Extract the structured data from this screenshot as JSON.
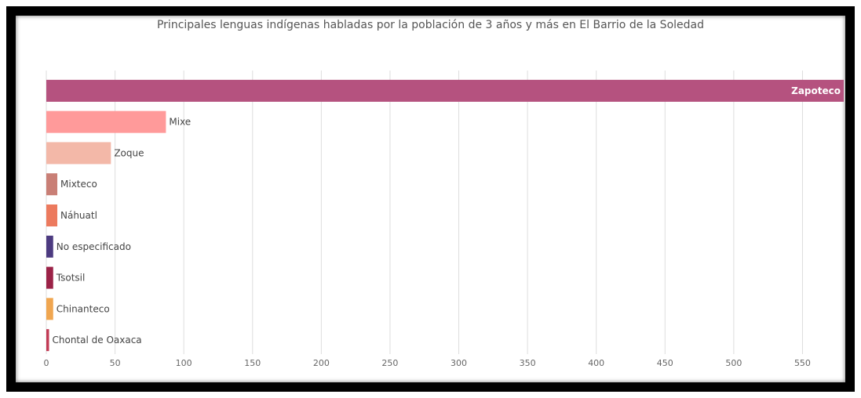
{
  "chart_data": {
    "type": "bar",
    "orientation": "horizontal",
    "title": "Principales lenguas indígenas habladas por la población de 3 años y más en El Barrio de la Soledad",
    "xlabel": "",
    "ylabel": "",
    "xlim": [
      0,
      580
    ],
    "xticks": [
      0,
      50,
      100,
      150,
      200,
      250,
      300,
      350,
      400,
      450,
      500,
      550
    ],
    "grid": true,
    "legend": "none",
    "categories": [
      "Zapoteco",
      "Mixe",
      "Zoque",
      "Mixteco",
      "Náhuatl",
      "No especificado",
      "Tsotsil",
      "Chinanteco",
      "Chontal de Oaxaca"
    ],
    "values": [
      580,
      87,
      47,
      8,
      8,
      5,
      5,
      5,
      2
    ],
    "colors": [
      "#b5527f",
      "#ff9a9a",
      "#f3b8a8",
      "#c97f76",
      "#ec7a5e",
      "#4c3a80",
      "#9b2247",
      "#f0a650",
      "#c23b55"
    ]
  }
}
